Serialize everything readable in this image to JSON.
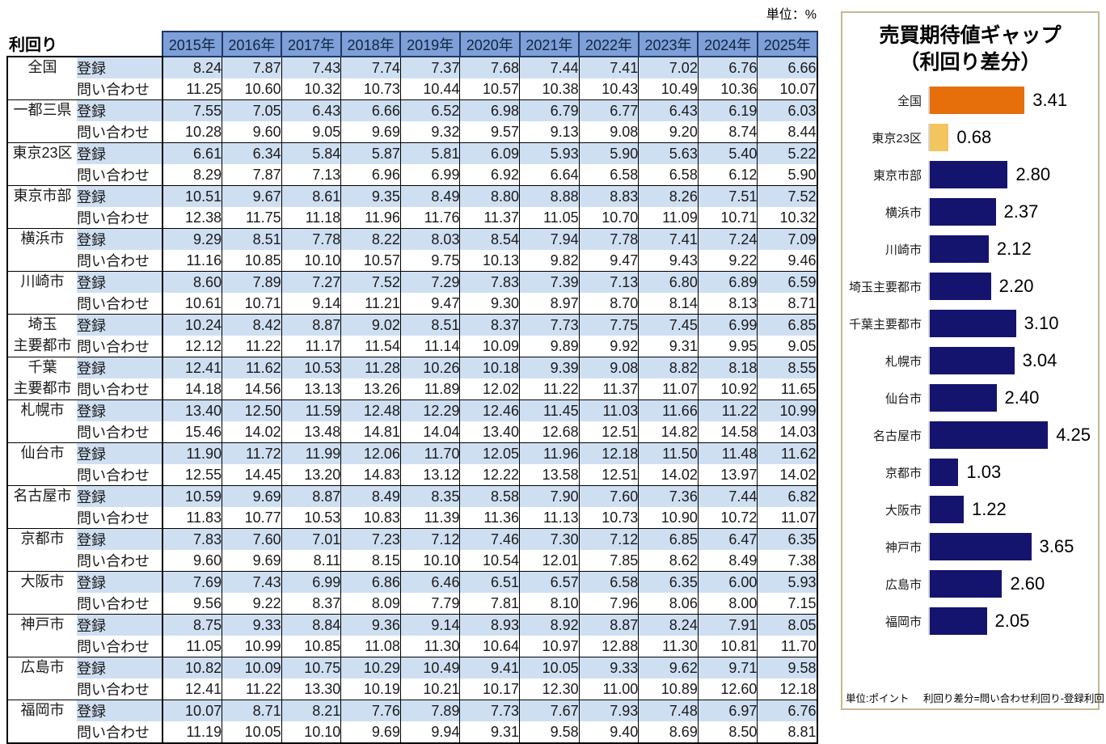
{
  "chart_data": [
    {
      "type": "table",
      "title": "利回り",
      "unit": "単位：%",
      "columns": [
        "2015年",
        "2016年",
        "2017年",
        "2018年",
        "2019年",
        "2020年",
        "2021年",
        "2022年",
        "2023年",
        "2024年",
        "2025年"
      ],
      "row_header_labels": [
        "登録",
        "問い合わせ"
      ],
      "stripe_colors": {
        "header_bg": "#7E9FD8",
        "registered_row_bg": "#CFDFF2",
        "inquiry_row_bg": "#FFFFFF"
      },
      "regions": [
        {
          "name": "全国",
          "name_lines": [
            "全国"
          ],
          "registered": [
            8.24,
            7.87,
            7.43,
            7.74,
            7.37,
            7.68,
            7.44,
            7.41,
            7.02,
            6.76,
            6.66
          ],
          "inquiry": [
            11.25,
            10.6,
            10.32,
            10.73,
            10.44,
            10.57,
            10.38,
            10.43,
            10.49,
            10.36,
            10.07
          ]
        },
        {
          "name": "一都三県",
          "name_lines": [
            "一都三県"
          ],
          "registered": [
            7.55,
            7.05,
            6.43,
            6.66,
            6.52,
            6.98,
            6.79,
            6.77,
            6.43,
            6.19,
            6.03
          ],
          "inquiry": [
            10.28,
            9.6,
            9.05,
            9.69,
            9.32,
            9.57,
            9.13,
            9.08,
            9.2,
            8.74,
            8.44
          ]
        },
        {
          "name": "東京23区",
          "name_lines": [
            "東京23区"
          ],
          "registered": [
            6.61,
            6.34,
            5.84,
            5.87,
            5.81,
            6.09,
            5.93,
            5.9,
            5.63,
            5.4,
            5.22
          ],
          "inquiry": [
            8.29,
            7.87,
            7.13,
            6.96,
            6.99,
            6.92,
            6.64,
            6.58,
            6.58,
            6.12,
            5.9
          ]
        },
        {
          "name": "東京市部",
          "name_lines": [
            "東京市部"
          ],
          "registered": [
            10.51,
            9.67,
            8.61,
            9.35,
            8.49,
            8.8,
            8.88,
            8.83,
            8.26,
            7.51,
            7.52
          ],
          "inquiry": [
            12.38,
            11.75,
            11.18,
            11.96,
            11.76,
            11.37,
            11.05,
            10.7,
            11.09,
            10.71,
            10.32
          ]
        },
        {
          "name": "横浜市",
          "name_lines": [
            "横浜市"
          ],
          "registered": [
            9.29,
            8.51,
            7.78,
            8.22,
            8.03,
            8.54,
            7.94,
            7.78,
            7.41,
            7.24,
            7.09
          ],
          "inquiry": [
            11.16,
            10.85,
            10.1,
            10.57,
            9.75,
            10.13,
            9.82,
            9.47,
            9.43,
            9.22,
            9.46
          ]
        },
        {
          "name": "川崎市",
          "name_lines": [
            "川崎市"
          ],
          "registered": [
            8.6,
            7.89,
            7.27,
            7.52,
            7.29,
            7.83,
            7.39,
            7.13,
            6.8,
            6.89,
            6.59
          ],
          "inquiry": [
            10.61,
            10.71,
            9.14,
            11.21,
            9.47,
            9.3,
            8.97,
            8.7,
            8.14,
            8.13,
            8.71
          ]
        },
        {
          "name": "埼玉主要都市",
          "name_lines": [
            "埼玉",
            "主要都市"
          ],
          "registered": [
            10.24,
            8.42,
            8.87,
            9.02,
            8.51,
            8.37,
            7.73,
            7.75,
            7.45,
            6.99,
            6.85
          ],
          "inquiry": [
            12.12,
            11.22,
            11.17,
            11.54,
            11.14,
            10.09,
            9.89,
            9.92,
            9.31,
            9.95,
            9.05
          ]
        },
        {
          "name": "千葉主要都市",
          "name_lines": [
            "千葉",
            "主要都市"
          ],
          "registered": [
            12.41,
            11.62,
            10.53,
            11.28,
            10.26,
            10.18,
            9.39,
            9.08,
            8.82,
            8.18,
            8.55
          ],
          "inquiry": [
            14.18,
            14.56,
            13.13,
            13.26,
            11.89,
            12.02,
            11.22,
            11.37,
            11.07,
            10.92,
            11.65
          ]
        },
        {
          "name": "札幌市",
          "name_lines": [
            "札幌市"
          ],
          "registered": [
            13.4,
            12.5,
            11.59,
            12.48,
            12.29,
            12.46,
            11.45,
            11.03,
            11.66,
            11.22,
            10.99
          ],
          "inquiry": [
            15.46,
            14.02,
            13.48,
            14.81,
            14.04,
            13.4,
            12.68,
            12.51,
            14.82,
            14.58,
            14.03
          ]
        },
        {
          "name": "仙台市",
          "name_lines": [
            "仙台市"
          ],
          "registered": [
            11.9,
            11.72,
            11.99,
            12.06,
            11.7,
            12.05,
            11.96,
            12.18,
            11.5,
            11.48,
            11.62
          ],
          "inquiry": [
            12.55,
            14.45,
            13.2,
            14.83,
            13.12,
            12.22,
            13.58,
            12.51,
            14.02,
            13.97,
            14.02
          ]
        },
        {
          "name": "名古屋市",
          "name_lines": [
            "名古屋市"
          ],
          "registered": [
            10.59,
            9.69,
            8.87,
            8.49,
            8.35,
            8.58,
            7.9,
            7.6,
            7.36,
            7.44,
            6.82
          ],
          "inquiry": [
            11.83,
            10.77,
            10.53,
            10.83,
            11.39,
            11.36,
            11.13,
            10.73,
            10.9,
            10.72,
            11.07
          ]
        },
        {
          "name": "京都市",
          "name_lines": [
            "京都市"
          ],
          "registered": [
            7.83,
            7.6,
            7.01,
            7.23,
            7.12,
            7.46,
            7.3,
            7.12,
            6.85,
            6.47,
            6.35
          ],
          "inquiry": [
            9.6,
            9.69,
            8.11,
            8.15,
            10.1,
            10.54,
            12.01,
            7.85,
            8.62,
            8.49,
            7.38
          ]
        },
        {
          "name": "大阪市",
          "name_lines": [
            "大阪市"
          ],
          "registered": [
            7.69,
            7.43,
            6.99,
            6.86,
            6.46,
            6.51,
            6.57,
            6.58,
            6.35,
            6.0,
            5.93
          ],
          "inquiry": [
            9.56,
            9.22,
            8.37,
            8.09,
            7.79,
            7.81,
            8.1,
            7.96,
            8.06,
            8.0,
            7.15
          ]
        },
        {
          "name": "神戸市",
          "name_lines": [
            "神戸市"
          ],
          "registered": [
            8.75,
            9.33,
            8.84,
            9.36,
            9.14,
            8.93,
            8.92,
            8.87,
            8.24,
            7.91,
            8.05
          ],
          "inquiry": [
            11.05,
            10.99,
            10.85,
            11.08,
            11.3,
            10.64,
            10.97,
            12.88,
            11.3,
            10.81,
            11.7
          ]
        },
        {
          "name": "広島市",
          "name_lines": [
            "広島市"
          ],
          "registered": [
            10.82,
            10.09,
            10.75,
            10.29,
            10.49,
            9.41,
            10.05,
            9.33,
            9.62,
            9.71,
            9.58
          ],
          "inquiry": [
            12.41,
            11.22,
            13.3,
            10.19,
            10.21,
            10.17,
            12.3,
            11.0,
            10.89,
            12.6,
            12.18
          ]
        },
        {
          "name": "福岡市",
          "name_lines": [
            "福岡市"
          ],
          "registered": [
            10.07,
            8.71,
            8.21,
            7.76,
            7.89,
            7.73,
            7.67,
            7.93,
            7.48,
            6.97,
            6.76
          ],
          "inquiry": [
            11.19,
            10.05,
            10.1,
            9.69,
            9.94,
            9.31,
            9.58,
            9.4,
            8.69,
            8.5,
            8.81
          ]
        }
      ]
    },
    {
      "type": "bar",
      "orientation": "horizontal",
      "title": "売買期待値ギャップ（利回り差分）",
      "title_lines": [
        "売買期待値ギャップ",
        "（利回り差分）"
      ],
      "categories": [
        "全国",
        "東京23区",
        "東京市部",
        "横浜市",
        "川崎市",
        "埼玉主要都市",
        "千葉主要都市",
        "札幌市",
        "仙台市",
        "名古屋市",
        "京都市",
        "大阪市",
        "神戸市",
        "広島市",
        "福岡市"
      ],
      "values": [
        3.41,
        0.68,
        2.8,
        2.37,
        2.12,
        2.2,
        3.1,
        3.04,
        2.4,
        4.25,
        1.03,
        1.22,
        3.65,
        2.6,
        2.05
      ],
      "bar_colors": [
        "#E66F0C",
        "#F2C55F",
        "#14146E",
        "#14146E",
        "#14146E",
        "#14146E",
        "#14146E",
        "#14146E",
        "#14146E",
        "#14146E",
        "#14146E",
        "#14146E",
        "#14146E",
        "#14146E",
        "#14146E"
      ],
      "xlim": [
        0,
        4.5
      ],
      "grid": false,
      "legend": false,
      "panel_border_color": "#C8B890",
      "footer_unit": "単位:ポイント",
      "footer_formula": "利回り差分=問い合わせ利回り-登録利回り"
    }
  ]
}
